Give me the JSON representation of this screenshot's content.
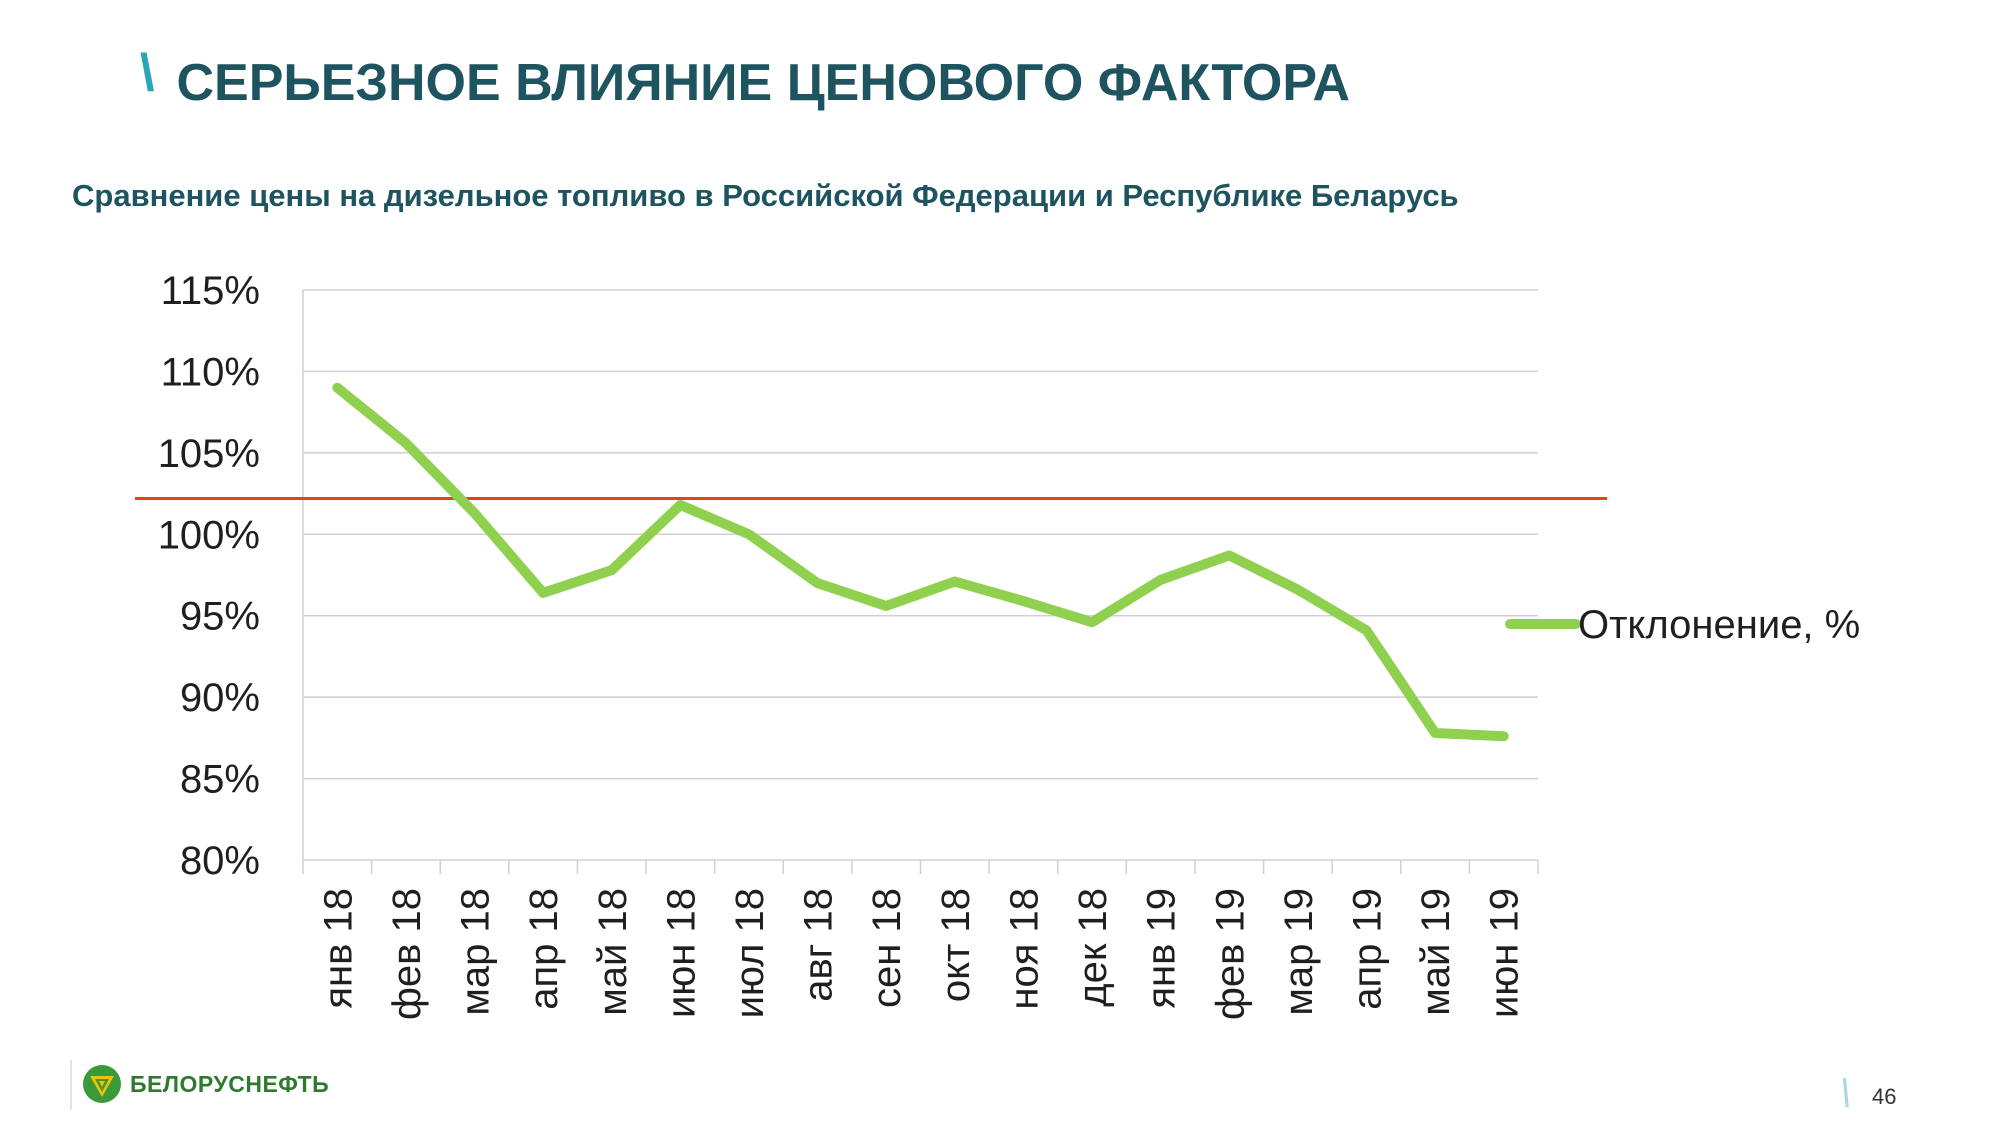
{
  "slide": {
    "title_mark": "\\",
    "title": "СЕРЬЕЗНОЕ ВЛИЯНИЕ ЦЕНОВОГО ФАКТОРА",
    "subtitle": "Сравнение цены на дизельное топливо в Российской Федерации и Республике Беларусь",
    "page_mark": "\\",
    "page_number": "46",
    "logo_text": "БЕЛОРУСНЕФТЬ"
  },
  "chart_data": {
    "type": "line",
    "title": "",
    "xlabel": "",
    "ylabel": "",
    "categories": [
      "янв 18",
      "фев 18",
      "мар 18",
      "апр 18",
      "май 18",
      "июн 18",
      "июл 18",
      "авг 18",
      "сен 18",
      "окт 18",
      "ноя 18",
      "дек 18",
      "янв 19",
      "фев 19",
      "мар 19",
      "апр 19",
      "май 19",
      "июн 19"
    ],
    "series": [
      {
        "name": "Отклонение, %",
        "color": "#8fd14f",
        "values": [
          109.0,
          105.6,
          101.3,
          96.4,
          97.8,
          101.8,
          100.0,
          97.0,
          95.6,
          97.1,
          95.9,
          94.6,
          97.2,
          98.7,
          96.6,
          94.1,
          87.8,
          87.6
        ]
      }
    ],
    "reference_line": {
      "value": 102.2,
      "color": "#e8401c"
    },
    "yticks": [
      "80%",
      "85%",
      "90%",
      "95%",
      "100%",
      "105%",
      "110%",
      "115%"
    ],
    "ylim": [
      80,
      115
    ],
    "grid": true,
    "legend_position": "right"
  },
  "colors": {
    "title": "#1e5360",
    "accent": "#2aa6b8",
    "series": "#8fd14f",
    "reference": "#e8401c",
    "grid": "#d0d0d0",
    "logo": "#2f7a2f"
  }
}
